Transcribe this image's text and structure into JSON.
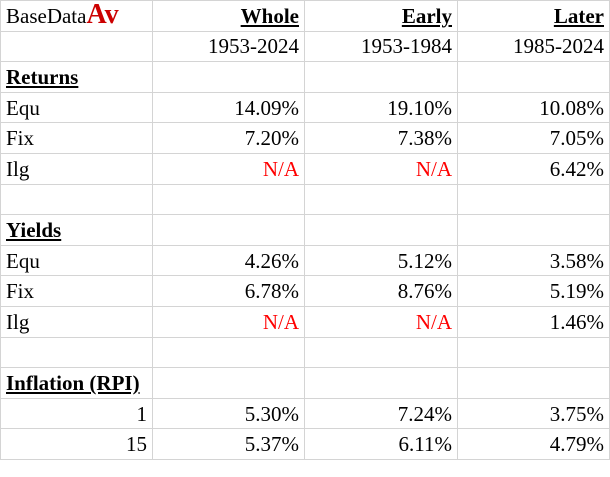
{
  "title": {
    "base": "BaseData",
    "suffix": "Av"
  },
  "periods": [
    {
      "label": "Whole",
      "range": "1953-2024"
    },
    {
      "label": "Early",
      "range": "1953-1984"
    },
    {
      "label": "Later",
      "range": "1985-2024"
    }
  ],
  "sections": {
    "returns": {
      "heading": "Returns",
      "rows": [
        {
          "label": "Equ",
          "values": [
            "14.09%",
            "19.10%",
            "10.08%"
          ]
        },
        {
          "label": "Fix",
          "values": [
            "7.20%",
            "7.38%",
            "7.05%"
          ]
        },
        {
          "label": "Ilg",
          "values": [
            "N/A",
            "N/A",
            "6.42%"
          ]
        }
      ]
    },
    "yields": {
      "heading": "Yields",
      "rows": [
        {
          "label": "Equ",
          "values": [
            "4.26%",
            "5.12%",
            "3.58%"
          ]
        },
        {
          "label": "Fix",
          "values": [
            "6.78%",
            "8.76%",
            "5.19%"
          ]
        },
        {
          "label": "Ilg",
          "values": [
            "N/A",
            "N/A",
            "1.46%"
          ]
        }
      ]
    },
    "inflation": {
      "heading": "Inflation (RPI)",
      "rows": [
        {
          "label": "1",
          "values": [
            "5.30%",
            "7.24%",
            "3.75%"
          ]
        },
        {
          "label": "15",
          "values": [
            "5.37%",
            "6.11%",
            "4.79%"
          ]
        }
      ]
    }
  },
  "colors": {
    "na_text": "#ff0000",
    "title_accent": "#cc0000",
    "gridline": "#d4d4d4"
  }
}
